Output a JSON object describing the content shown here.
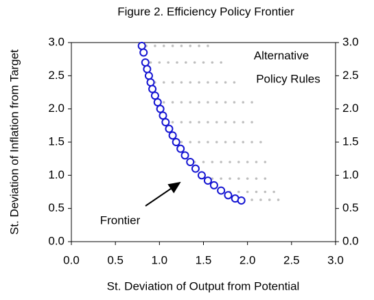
{
  "chart_data": {
    "type": "scatter",
    "title": "Figure 2. Efficiency Policy Frontier",
    "x_label": "St. Deviation of Output from Potential",
    "y_label": "St. Deviation of Inflation from Target",
    "annotations": [
      {
        "text": "Alternative"
      },
      {
        "text": "Policy Rules"
      },
      {
        "text": "Frontier"
      }
    ],
    "xlim": [
      0,
      3
    ],
    "ylim": [
      0,
      3
    ],
    "y2lim": [
      0,
      3
    ],
    "xticks": [
      {
        "value": 0,
        "label": "0.0"
      },
      0.5,
      {
        "value": 1,
        "label": "1.0"
      },
      1.5,
      {
        "value": 2,
        "label": "2.0"
      },
      2.5,
      {
        "value": 3,
        "label": "3.0"
      }
    ],
    "yticks": [
      {
        "value": 0,
        "label": "0.0"
      },
      0.5,
      {
        "value": 1,
        "label": "1.0"
      },
      1.5,
      {
        "value": 2,
        "label": "2.0"
      },
      2.5,
      {
        "value": 3,
        "label": "3.0"
      }
    ],
    "y2ticks": [
      {
        "value": 0,
        "label": "0.0"
      },
      0.5,
      {
        "value": 1,
        "label": "1.0"
      },
      1.5,
      {
        "value": 2,
        "label": "2.0"
      },
      2.5,
      {
        "value": 3,
        "label": "3.0"
      }
    ],
    "grid": false,
    "series": [
      {
        "color": "#bfbfbf",
        "marker": "dot",
        "x": [
          0.85,
          0.95,
          1.05,
          1.15,
          1.25,
          1.35,
          1.45,
          1.55,
          0.9,
          1.0,
          1.1,
          1.2,
          1.3,
          1.4,
          1.5,
          1.6,
          1.7,
          0.95,
          1.05,
          1.15,
          1.25,
          1.35,
          1.45,
          1.55,
          1.65,
          1.75,
          1.85,
          1.05,
          1.15,
          1.25,
          1.35,
          1.45,
          1.55,
          1.65,
          1.75,
          1.85,
          1.95,
          2.05,
          1.15,
          1.25,
          1.35,
          1.45,
          1.55,
          1.65,
          1.75,
          1.85,
          1.95,
          2.05,
          1.25,
          1.35,
          1.45,
          1.55,
          1.65,
          1.75,
          1.85,
          1.95,
          2.05,
          2.15,
          1.4,
          1.5,
          1.6,
          1.7,
          1.8,
          1.9,
          2.0,
          2.1,
          2.2,
          1.6,
          1.7,
          1.8,
          1.9,
          2.0,
          2.1,
          2.2,
          1.8,
          1.9,
          2.0,
          2.1,
          2.2,
          2.3,
          1.95,
          2.05,
          2.15,
          2.25,
          2.35
        ],
        "y": [
          2.95,
          2.95,
          2.95,
          2.95,
          2.95,
          2.95,
          2.95,
          2.95,
          2.7,
          2.7,
          2.7,
          2.7,
          2.7,
          2.7,
          2.7,
          2.7,
          2.7,
          2.4,
          2.4,
          2.4,
          2.4,
          2.4,
          2.4,
          2.4,
          2.4,
          2.4,
          2.4,
          2.1,
          2.1,
          2.1,
          2.1,
          2.1,
          2.1,
          2.1,
          2.1,
          2.1,
          2.1,
          2.1,
          1.8,
          1.8,
          1.8,
          1.8,
          1.8,
          1.8,
          1.8,
          1.8,
          1.8,
          1.8,
          1.5,
          1.5,
          1.5,
          1.5,
          1.5,
          1.5,
          1.5,
          1.5,
          1.5,
          1.5,
          1.2,
          1.2,
          1.2,
          1.2,
          1.2,
          1.2,
          1.2,
          1.2,
          1.2,
          0.95,
          0.95,
          0.95,
          0.95,
          0.95,
          0.95,
          0.95,
          0.75,
          0.75,
          0.75,
          0.75,
          0.75,
          0.75,
          0.63,
          0.63,
          0.63,
          0.63,
          0.63
        ]
      },
      {
        "color": "#1414d2",
        "marker": "open-circle",
        "x": [
          0.8,
          0.82,
          0.84,
          0.86,
          0.88,
          0.9,
          0.92,
          0.95,
          0.98,
          1.01,
          1.04,
          1.07,
          1.11,
          1.15,
          1.19,
          1.24,
          1.29,
          1.35,
          1.41,
          1.48,
          1.55,
          1.62,
          1.7,
          1.78,
          1.86,
          1.93
        ],
        "y": [
          2.95,
          2.85,
          2.7,
          2.6,
          2.5,
          2.4,
          2.3,
          2.2,
          2.1,
          2.0,
          1.9,
          1.8,
          1.7,
          1.6,
          1.5,
          1.4,
          1.3,
          1.2,
          1.1,
          1.0,
          0.92,
          0.85,
          0.77,
          0.7,
          0.65,
          0.62
        ]
      }
    ]
  }
}
